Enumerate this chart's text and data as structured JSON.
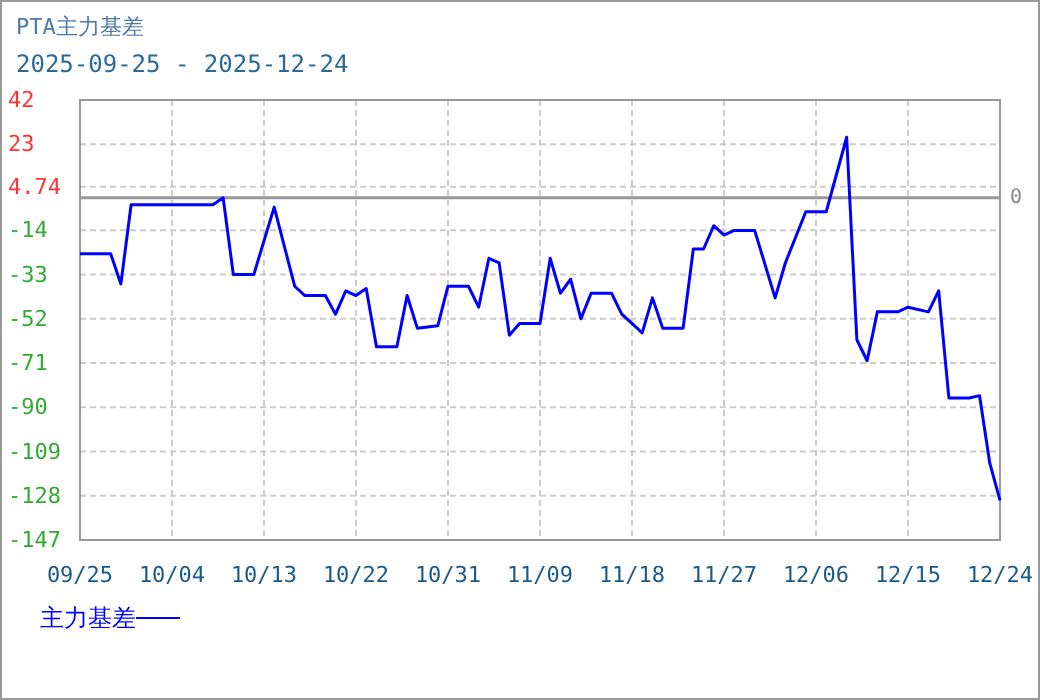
{
  "chart_data": {
    "type": "line",
    "title": "PTA主力基差",
    "subtitle": "2025-09-25 - 2025-12-24",
    "x": [
      "2025-09-25",
      "2025-09-28",
      "2025-09-29",
      "2025-09-30",
      "2025-10-08",
      "2025-10-09",
      "2025-10-10",
      "2025-10-12",
      "2025-10-14",
      "2025-10-16",
      "2025-10-17",
      "2025-10-19",
      "2025-10-20",
      "2025-10-21",
      "2025-10-22",
      "2025-10-23",
      "2025-10-24",
      "2025-10-26",
      "2025-10-27",
      "2025-10-28",
      "2025-10-30",
      "2025-10-31",
      "2025-11-02",
      "2025-11-03",
      "2025-11-04",
      "2025-11-05",
      "2025-11-06",
      "2025-11-07",
      "2025-11-09",
      "2025-11-10",
      "2025-11-11",
      "2025-11-12",
      "2025-11-13",
      "2025-11-14",
      "2025-11-16",
      "2025-11-17",
      "2025-11-19",
      "2025-11-20",
      "2025-11-21",
      "2025-11-23",
      "2025-11-24",
      "2025-11-25",
      "2025-11-26",
      "2025-11-27",
      "2025-11-28",
      "2025-11-30",
      "2025-12-02",
      "2025-12-03",
      "2025-12-05",
      "2025-12-07",
      "2025-12-09",
      "2025-12-10",
      "2025-12-11",
      "2025-12-12",
      "2025-12-14",
      "2025-12-15",
      "2025-12-17",
      "2025-12-18",
      "2025-12-19",
      "2025-12-21",
      "2025-12-22",
      "2025-12-23",
      "2025-12-24"
    ],
    "series": [
      {
        "name": "主力基差",
        "color": "#0000ff",
        "values": [
          -24,
          -24,
          -37,
          -3,
          -3,
          0,
          -33,
          -33,
          -4,
          -38,
          -42,
          -42,
          -50,
          -40,
          -42,
          -39,
          -64,
          -64,
          -42,
          -56,
          -55,
          -38,
          -38,
          -47,
          -26,
          -28,
          -59,
          -54,
          -54,
          -26,
          -41,
          -35,
          -52,
          -41,
          -41,
          -50,
          -58,
          -43,
          -56,
          -56,
          -22,
          -22,
          -12,
          -16,
          -14,
          -14,
          -43,
          -28,
          -6,
          -6,
          26,
          -61,
          -70,
          -49,
          -49,
          -47,
          -49,
          -40,
          -86,
          -86,
          -85,
          -114,
          -130
        ]
      }
    ],
    "xlim": [
      "2025-09-25",
      "2025-12-24"
    ],
    "xticks": [
      {
        "value": "2025-09-25",
        "label": "09/25"
      },
      {
        "value": "2025-10-04",
        "label": "10/04"
      },
      {
        "value": "2025-10-13",
        "label": "10/13"
      },
      {
        "value": "2025-10-22",
        "label": "10/22"
      },
      {
        "value": "2025-10-31",
        "label": "10/31"
      },
      {
        "value": "2025-11-09",
        "label": "11/09"
      },
      {
        "value": "2025-11-18",
        "label": "11/18"
      },
      {
        "value": "2025-11-27",
        "label": "11/27"
      },
      {
        "value": "2025-12-06",
        "label": "12/06"
      },
      {
        "value": "2025-12-15",
        "label": "12/15"
      },
      {
        "value": "2025-12-24",
        "label": "12/24"
      }
    ],
    "ylim": [
      -147,
      42
    ],
    "yticks": [
      42,
      23,
      4.74,
      -14,
      -33,
      -52,
      -71,
      -90,
      -109,
      -128,
      -147
    ],
    "ref_lines": [
      {
        "axis": "y",
        "value": 0,
        "label": "0",
        "color": "#999999"
      }
    ],
    "grid": true,
    "legend": "bottom left",
    "line_style": "solid",
    "marker": "none"
  }
}
